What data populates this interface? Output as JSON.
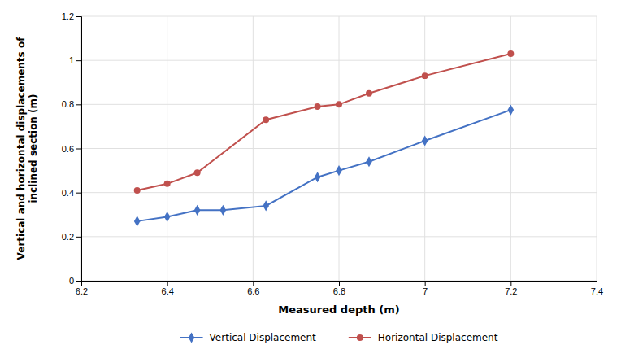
{
  "chart_data": {
    "type": "line",
    "xlabel": "Measured depth (m)",
    "ylabel": [
      "Vertical and horizontal displacements of",
      "inclined section (m)"
    ],
    "series": [
      {
        "name": "Vertical Displacement",
        "color": "#4472C4",
        "marker": "diamond",
        "line_style": "solid",
        "x": [
          6.33,
          6.4,
          6.47,
          6.53,
          6.63,
          6.75,
          6.8,
          6.87,
          7.0,
          7.2
        ],
        "values": [
          0.27,
          0.29,
          0.32,
          0.32,
          0.34,
          0.47,
          0.5,
          0.54,
          0.635,
          0.775
        ]
      },
      {
        "name": "Horizontal Displacement",
        "color": "#C0504D",
        "marker": "circle",
        "line_style": "solid",
        "x": [
          6.33,
          6.4,
          6.47,
          6.63,
          6.75,
          6.8,
          6.87,
          7.0,
          7.2
        ],
        "values": [
          0.41,
          0.44,
          0.49,
          0.73,
          0.79,
          0.8,
          0.85,
          0.93,
          1.03
        ]
      }
    ],
    "xlim": [
      6.2,
      7.4
    ],
    "ylim": [
      0,
      1.2
    ],
    "xticks": [
      6.2,
      6.4,
      6.6,
      6.8,
      7,
      7.2,
      7.4
    ],
    "yticks": [
      0,
      0.2,
      0.4,
      0.6,
      0.8,
      1,
      1.2
    ],
    "grid": true,
    "legend": "bottom"
  }
}
